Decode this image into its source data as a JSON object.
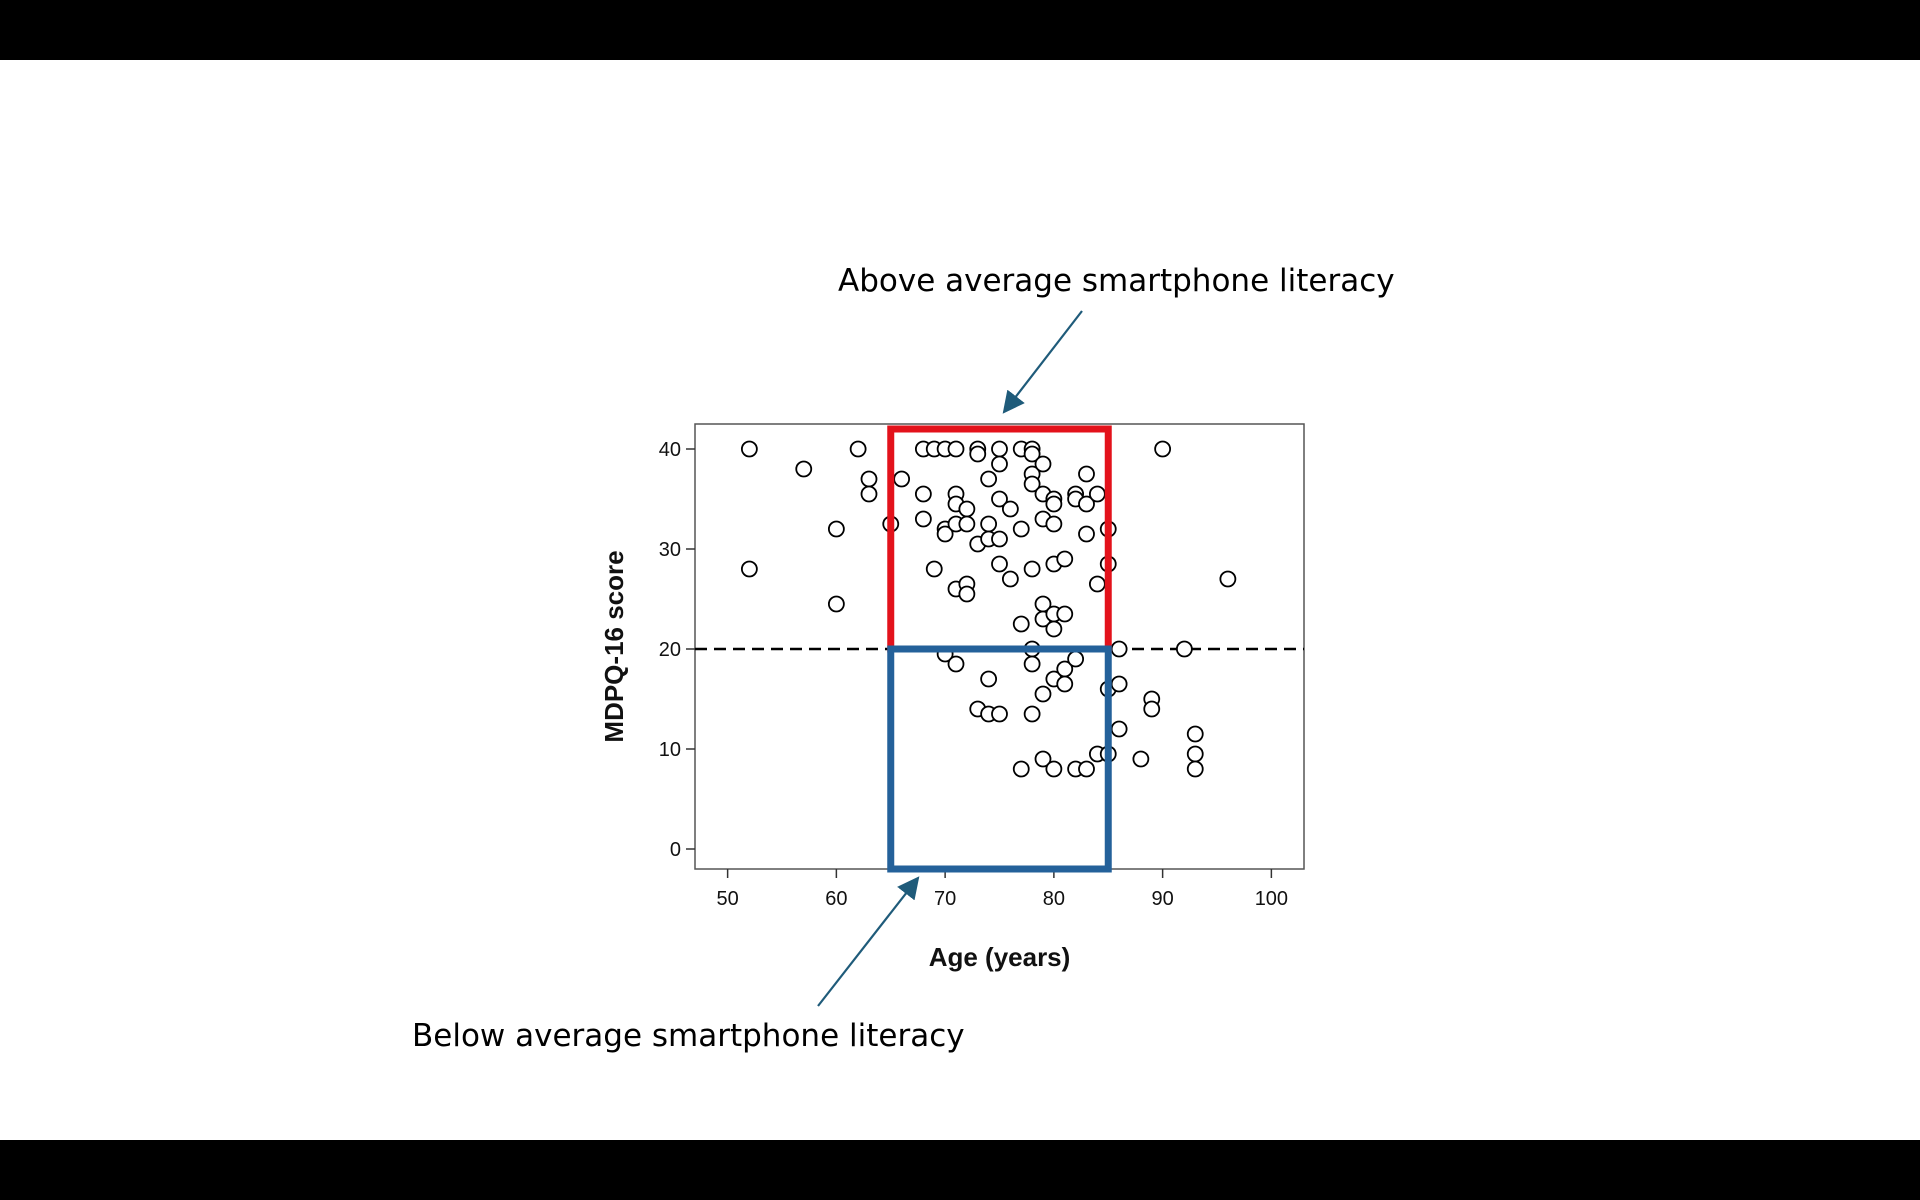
{
  "annotations": {
    "above": "Above average smartphone literacy",
    "below": "Below average smartphone literacy"
  },
  "colors": {
    "above_box": "#e3121b",
    "below_box": "#24619a",
    "arrow": "#1f5b7a"
  },
  "highlight_regions": {
    "above": {
      "x": [
        65,
        85
      ],
      "y": [
        20,
        42
      ]
    },
    "below": {
      "x": [
        65,
        85
      ],
      "y": [
        -2,
        20
      ]
    }
  },
  "chart_data": {
    "type": "scatter",
    "xlabel": "Age (years)",
    "ylabel": "MDPQ-16 score",
    "xlim": [
      47,
      103
    ],
    "ylim": [
      -2,
      42.5
    ],
    "xticks": [
      50,
      60,
      70,
      80,
      90,
      100
    ],
    "yticks": [
      0,
      10,
      20,
      30,
      40
    ],
    "reference_line": {
      "y": 20,
      "style": "dashed"
    },
    "grid": false,
    "points": [
      [
        52,
        40
      ],
      [
        52,
        28
      ],
      [
        57,
        38
      ],
      [
        60,
        32
      ],
      [
        60,
        24.5
      ],
      [
        62,
        40
      ],
      [
        63,
        37
      ],
      [
        63,
        35.5
      ],
      [
        65,
        32.5
      ],
      [
        66,
        37
      ],
      [
        68,
        40
      ],
      [
        68,
        35.5
      ],
      [
        68,
        33
      ],
      [
        69,
        40
      ],
      [
        69,
        28
      ],
      [
        70,
        40
      ],
      [
        70,
        32
      ],
      [
        70,
        31.5
      ],
      [
        70,
        19.5
      ],
      [
        71,
        40
      ],
      [
        71,
        35.5
      ],
      [
        71,
        34.5
      ],
      [
        71,
        32.5
      ],
      [
        71,
        26
      ],
      [
        71,
        18.5
      ],
      [
        72,
        34
      ],
      [
        72,
        32.5
      ],
      [
        72,
        26.5
      ],
      [
        72,
        25.5
      ],
      [
        73,
        40
      ],
      [
        73,
        39.5
      ],
      [
        73,
        30.5
      ],
      [
        73,
        14
      ],
      [
        74,
        37
      ],
      [
        74,
        32.5
      ],
      [
        74,
        31
      ],
      [
        74,
        17
      ],
      [
        74,
        13.5
      ],
      [
        75,
        40
      ],
      [
        75,
        38.5
      ],
      [
        75,
        35
      ],
      [
        75,
        31
      ],
      [
        75,
        28.5
      ],
      [
        75,
        13.5
      ],
      [
        76,
        34
      ],
      [
        76,
        27
      ],
      [
        77,
        40
      ],
      [
        77,
        32
      ],
      [
        77,
        22.5
      ],
      [
        77,
        8
      ],
      [
        78,
        40
      ],
      [
        78,
        39.5
      ],
      [
        78,
        37.5
      ],
      [
        78,
        36.5
      ],
      [
        78,
        28
      ],
      [
        78,
        20
      ],
      [
        78,
        18.5
      ],
      [
        78,
        13.5
      ],
      [
        79,
        38.5
      ],
      [
        79,
        35.5
      ],
      [
        79,
        33
      ],
      [
        79,
        24.5
      ],
      [
        79,
        23
      ],
      [
        79,
        15.5
      ],
      [
        79,
        9
      ],
      [
        80,
        35
      ],
      [
        80,
        34.5
      ],
      [
        80,
        32.5
      ],
      [
        80,
        28.5
      ],
      [
        80,
        23.5
      ],
      [
        80,
        22
      ],
      [
        80,
        17
      ],
      [
        80,
        8
      ],
      [
        81,
        29
      ],
      [
        81,
        23.5
      ],
      [
        81,
        18
      ],
      [
        81,
        16.5
      ],
      [
        82,
        35.5
      ],
      [
        82,
        35
      ],
      [
        82,
        19
      ],
      [
        82,
        8
      ],
      [
        83,
        37.5
      ],
      [
        83,
        34.5
      ],
      [
        83,
        31.5
      ],
      [
        83,
        8
      ],
      [
        84,
        35.5
      ],
      [
        84,
        26.5
      ],
      [
        84,
        9.5
      ],
      [
        85,
        32
      ],
      [
        85,
        28.5
      ],
      [
        85,
        16
      ],
      [
        85,
        9.5
      ],
      [
        86,
        20
      ],
      [
        86,
        16.5
      ],
      [
        86,
        12
      ],
      [
        88,
        9
      ],
      [
        89,
        15
      ],
      [
        89,
        14
      ],
      [
        90,
        40
      ],
      [
        92,
        20
      ],
      [
        93,
        11.5
      ],
      [
        93,
        9.5
      ],
      [
        93,
        8
      ],
      [
        96,
        27
      ]
    ]
  }
}
